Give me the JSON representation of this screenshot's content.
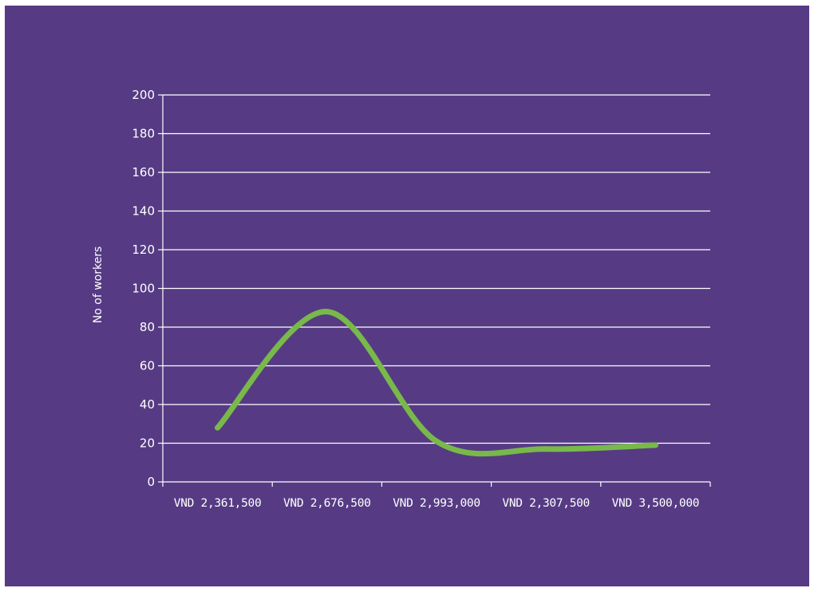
{
  "colors": {
    "panel_background": "#563b84",
    "line": "#78b94a",
    "gridlines": "#ffffff",
    "text": "#ffffff"
  },
  "chart_data": {
    "type": "line",
    "title": "",
    "xlabel": "",
    "ylabel": "No of workers",
    "ylim": [
      0,
      200
    ],
    "yticks": [
      0,
      20,
      40,
      60,
      80,
      100,
      120,
      140,
      160,
      180,
      200
    ],
    "grid": true,
    "smooth": true,
    "categories": [
      "VND 2,361,500",
      "VND 2,676,500",
      "VND 2,993,000",
      "VND 2,307,500",
      "VND 3,500,000"
    ],
    "series": [
      {
        "values": [
          28,
          88,
          21,
          17,
          19
        ]
      }
    ]
  }
}
